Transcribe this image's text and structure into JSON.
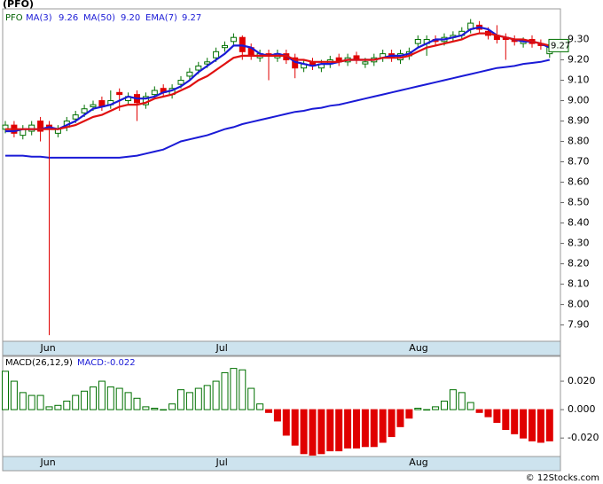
{
  "chart_data": [
    {
      "type": "candlestick",
      "title": "(PFO)",
      "symbol": "PFO",
      "categories": [
        null,
        null,
        null,
        null,
        null,
        "Jun",
        null,
        null,
        null,
        null,
        null,
        null,
        null,
        null,
        null,
        null,
        null,
        null,
        null,
        null,
        null,
        null,
        null,
        null,
        null,
        "Jul",
        null,
        null,
        null,
        null,
        null,
        null,
        null,
        null,
        null,
        null,
        null,
        null,
        null,
        null,
        null,
        null,
        null,
        null,
        null,
        null,
        null,
        "Aug",
        null,
        null,
        null,
        null,
        null,
        null,
        null,
        null,
        null,
        null,
        null,
        null,
        null,
        null,
        null
      ],
      "open": [
        8.86,
        8.88,
        8.83,
        8.85,
        8.9,
        8.88,
        8.84,
        8.87,
        8.91,
        8.94,
        8.97,
        9.0,
        8.98,
        9.04,
        9.0,
        9.03,
        8.98,
        9.03,
        9.06,
        9.03,
        9.08,
        9.12,
        9.15,
        9.18,
        9.21,
        9.26,
        9.29,
        9.31,
        9.26,
        9.21,
        9.23,
        9.21,
        9.23,
        9.21,
        9.16,
        9.19,
        9.16,
        9.18,
        9.21,
        9.19,
        9.22,
        9.18,
        9.19,
        9.21,
        9.23,
        9.2,
        9.22,
        9.28,
        9.28,
        9.3,
        9.29,
        9.31,
        9.32,
        9.35,
        9.37,
        9.34,
        9.32,
        9.31,
        9.3,
        9.28,
        9.3,
        9.28,
        9.23
      ],
      "high": [
        8.9,
        8.9,
        8.88,
        8.9,
        8.92,
        8.9,
        8.88,
        8.92,
        8.95,
        8.98,
        9.0,
        9.02,
        9.05,
        9.06,
        9.04,
        9.05,
        9.04,
        9.07,
        9.08,
        9.08,
        9.12,
        9.16,
        9.19,
        9.21,
        9.26,
        9.29,
        9.33,
        9.32,
        9.28,
        9.25,
        9.25,
        9.25,
        9.25,
        9.23,
        9.2,
        9.21,
        9.2,
        9.22,
        9.23,
        9.23,
        9.24,
        9.21,
        9.23,
        9.25,
        9.25,
        9.25,
        9.26,
        9.32,
        9.32,
        9.32,
        9.33,
        9.34,
        9.36,
        9.4,
        9.39,
        9.36,
        9.37,
        9.33,
        9.32,
        9.31,
        9.32,
        9.3,
        9.29
      ],
      "low": [
        8.84,
        8.82,
        8.81,
        8.83,
        8.8,
        7.85,
        8.82,
        8.85,
        8.89,
        8.92,
        8.95,
        8.95,
        8.96,
        8.95,
        8.98,
        8.9,
        8.96,
        9.01,
        9.02,
        9.01,
        9.06,
        9.1,
        9.13,
        9.16,
        9.19,
        9.24,
        9.27,
        9.2,
        9.2,
        9.19,
        9.1,
        9.19,
        9.18,
        9.11,
        9.14,
        9.15,
        9.14,
        9.16,
        9.17,
        9.17,
        9.18,
        9.16,
        9.17,
        9.19,
        9.19,
        9.18,
        9.2,
        9.26,
        9.22,
        9.27,
        9.27,
        9.29,
        9.3,
        9.33,
        9.33,
        9.3,
        9.28,
        9.2,
        9.27,
        9.26,
        9.26,
        9.25,
        9.21
      ],
      "close": [
        8.88,
        8.84,
        8.86,
        8.88,
        8.85,
        8.87,
        8.86,
        8.9,
        8.93,
        8.96,
        8.98,
        8.97,
        9.0,
        9.03,
        9.02,
        8.99,
        9.02,
        9.05,
        9.04,
        9.06,
        9.1,
        9.14,
        9.17,
        9.19,
        9.24,
        9.27,
        9.31,
        9.24,
        9.22,
        9.23,
        9.22,
        9.23,
        9.2,
        9.16,
        9.18,
        9.17,
        9.18,
        9.2,
        9.19,
        9.21,
        9.2,
        9.19,
        9.21,
        9.23,
        9.21,
        9.23,
        9.24,
        9.3,
        9.3,
        9.29,
        9.31,
        9.32,
        9.34,
        9.38,
        9.35,
        9.32,
        9.3,
        9.3,
        9.29,
        9.29,
        9.28,
        9.27,
        9.27
      ],
      "up_color": "#007000",
      "down_color": "#e00000",
      "series": [
        {
          "name": "MA(3)",
          "legend_value": "9.26",
          "color": "#1a1ad6",
          "values": [
            8.85,
            8.85,
            8.86,
            8.86,
            8.86,
            8.87,
            8.86,
            8.88,
            8.9,
            8.93,
            8.96,
            8.97,
            8.98,
            9.0,
            9.02,
            9.01,
            9.01,
            9.02,
            9.04,
            9.05,
            9.07,
            9.1,
            9.14,
            9.17,
            9.2,
            9.23,
            9.27,
            9.27,
            9.26,
            9.23,
            9.22,
            9.23,
            9.22,
            9.19,
            9.18,
            9.17,
            9.18,
            9.18,
            9.19,
            9.2,
            9.2,
            9.2,
            9.2,
            9.21,
            9.22,
            9.22,
            9.23,
            9.26,
            9.28,
            9.3,
            9.3,
            9.31,
            9.32,
            9.35,
            9.36,
            9.35,
            9.32,
            9.31,
            9.3,
            9.29,
            9.29,
            9.28,
            9.26
          ]
        },
        {
          "name": "MA(50)",
          "legend_value": "9.20",
          "color": "#1a1ad6",
          "values": [
            8.73,
            8.73,
            8.73,
            8.725,
            8.725,
            8.72,
            8.72,
            8.72,
            8.72,
            8.72,
            8.72,
            8.72,
            8.72,
            8.72,
            8.725,
            8.73,
            8.74,
            8.75,
            8.76,
            8.78,
            8.8,
            8.81,
            8.82,
            8.83,
            8.845,
            8.86,
            8.87,
            8.885,
            8.895,
            8.905,
            8.915,
            8.925,
            8.935,
            8.945,
            8.95,
            8.96,
            8.965,
            8.975,
            8.98,
            8.99,
            9.0,
            9.01,
            9.02,
            9.03,
            9.04,
            9.05,
            9.06,
            9.07,
            9.08,
            9.09,
            9.1,
            9.11,
            9.12,
            9.13,
            9.14,
            9.15,
            9.16,
            9.165,
            9.17,
            9.18,
            9.185,
            9.19,
            9.2
          ]
        },
        {
          "name": "EMA(7)",
          "legend_value": "9.27",
          "color": "#e01010",
          "values": [
            8.86,
            8.86,
            8.86,
            8.86,
            8.86,
            8.86,
            8.86,
            8.87,
            8.88,
            8.9,
            8.92,
            8.93,
            8.95,
            8.97,
            8.98,
            8.98,
            8.99,
            9.01,
            9.02,
            9.03,
            9.05,
            9.07,
            9.1,
            9.12,
            9.15,
            9.18,
            9.21,
            9.22,
            9.22,
            9.22,
            9.22,
            9.22,
            9.22,
            9.2,
            9.2,
            9.19,
            9.19,
            9.19,
            9.19,
            9.2,
            9.2,
            9.2,
            9.2,
            9.21,
            9.21,
            9.21,
            9.22,
            9.24,
            9.26,
            9.27,
            9.28,
            9.29,
            9.3,
            9.32,
            9.33,
            9.33,
            9.32,
            9.31,
            9.3,
            9.3,
            9.29,
            9.28,
            9.27
          ]
        }
      ],
      "last_price_label": "9.27",
      "ylim": [
        7.82,
        9.45
      ],
      "yticks": [
        {
          "value": 7.9,
          "label": "7.90"
        },
        {
          "value": 8.0,
          "label": "8.00"
        },
        {
          "value": 8.1,
          "label": "8.10"
        },
        {
          "value": 8.2,
          "label": "8.20"
        },
        {
          "value": 8.3,
          "label": "8.30"
        },
        {
          "value": 8.4,
          "label": "8.40"
        },
        {
          "value": 8.5,
          "label": "8.50"
        },
        {
          "value": 8.6,
          "label": "8.60"
        },
        {
          "value": 8.7,
          "label": "8.70"
        },
        {
          "value": 8.8,
          "label": "8.80"
        },
        {
          "value": 8.9,
          "label": "8.90"
        },
        {
          "value": 9.0,
          "label": "9.00"
        },
        {
          "value": 9.1,
          "label": "9.10"
        },
        {
          "value": 9.2,
          "label": "9.20"
        },
        {
          "value": 9.3,
          "label": "9.30"
        }
      ]
    },
    {
      "type": "bar",
      "title": "MACD(26,12,9)",
      "indicator": "MACD:-0.022",
      "values": [
        0.027,
        0.02,
        0.012,
        0.01,
        0.01,
        0.002,
        0.003,
        0.006,
        0.01,
        0.013,
        0.016,
        0.02,
        0.016,
        0.015,
        0.012,
        0.008,
        0.002,
        0.001,
        0.0,
        0.004,
        0.014,
        0.012,
        0.015,
        0.017,
        0.02,
        0.026,
        0.029,
        0.028,
        0.015,
        0.004,
        -0.002,
        -0.008,
        -0.018,
        -0.025,
        -0.031,
        -0.032,
        -0.031,
        -0.029,
        -0.029,
        -0.027,
        -0.027,
        -0.026,
        -0.026,
        -0.023,
        -0.019,
        -0.012,
        -0.006,
        0.001,
        0.0,
        0.002,
        0.006,
        0.014,
        0.012,
        0.005,
        -0.002,
        -0.005,
        -0.009,
        -0.014,
        -0.017,
        -0.02,
        -0.022,
        -0.023,
        -0.022
      ],
      "positive_color": "#007000",
      "negative_color": "#e00000",
      "ylim": [
        -0.033,
        0.0375
      ],
      "yticks": [
        {
          "value": -0.02,
          "label": "-0.020"
        },
        {
          "value": 0,
          "label": "0.000"
        },
        {
          "value": 0.02,
          "label": "0.020"
        }
      ]
    }
  ],
  "footer": "© 12Stocks.com"
}
